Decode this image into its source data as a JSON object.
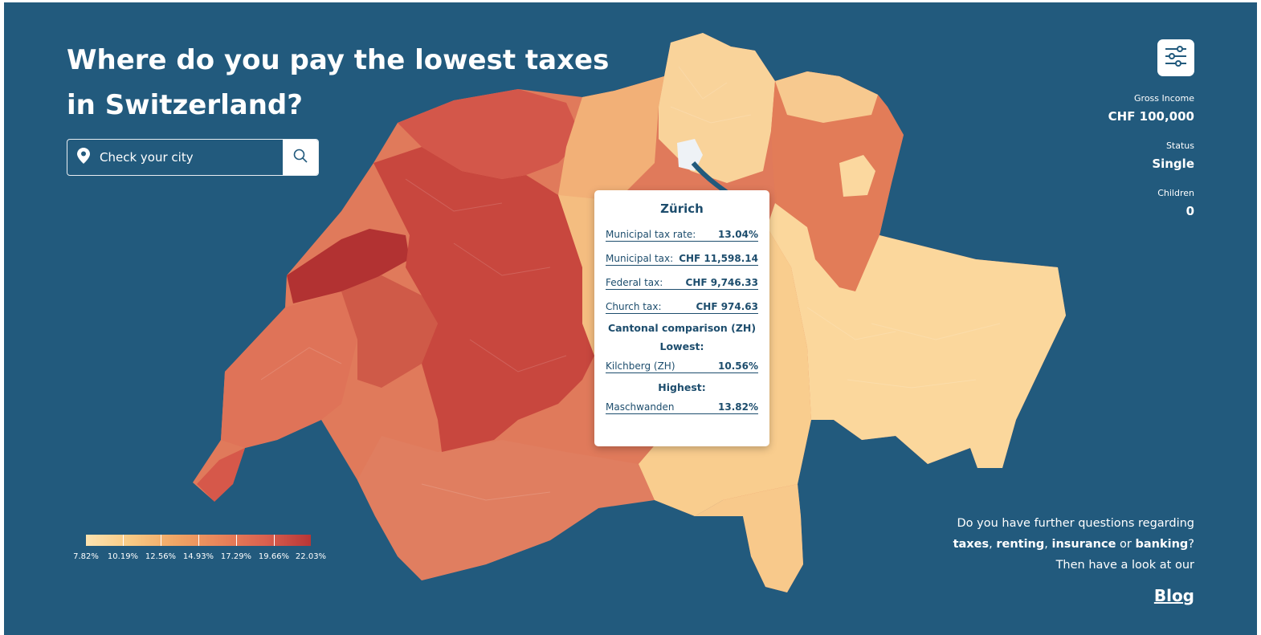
{
  "page": {
    "title": "Where do you pay the lowest taxes in Switzerland?"
  },
  "search": {
    "placeholder": "Check your city"
  },
  "settings": [
    {
      "label": "Gross Income",
      "value": "CHF 100,000"
    },
    {
      "label": "Status",
      "value": "Single"
    },
    {
      "label": "Children",
      "value": "0"
    }
  ],
  "tooltip": {
    "title": "Zürich",
    "rows": [
      {
        "label": "Municipal tax rate:",
        "value": "13.04%"
      },
      {
        "label": "Municipal tax:",
        "value": "CHF 11,598.14"
      },
      {
        "label": "Federal tax:",
        "value": "CHF 9,746.33"
      },
      {
        "label": "Church tax:",
        "value": "CHF 974.63"
      }
    ],
    "comparison_title": "Cantonal comparison (ZH)",
    "lowest_label": "Lowest:",
    "lowest": {
      "label": "Kilchberg (ZH)",
      "value": "10.56%"
    },
    "highest_label": "Highest:",
    "highest": {
      "label": "Maschwanden",
      "value": "13.82%"
    }
  },
  "legend": {
    "labels": [
      "7.82%",
      "10.19%",
      "12.56%",
      "14.93%",
      "17.29%",
      "19.66%",
      "22.03%"
    ]
  },
  "promo": {
    "line1": "Do you have further questions regarding",
    "t1": "taxes",
    "sep1": ", ",
    "t2": "renting",
    "sep2": ", ",
    "t3": "insurance",
    "mid": " or ",
    "t4": "banking",
    "end": "?",
    "line3": "Then have a look at our",
    "link": "Blog"
  },
  "colors": {
    "background": "#225a7d",
    "scale": [
      "#fde3b0",
      "#f8c984",
      "#f0a565",
      "#e8835a",
      "#d9604f",
      "#b73636"
    ],
    "text_dark": "#1d4d6d"
  },
  "icons": [
    "location-pin-icon",
    "search-icon",
    "filter-sliders-icon"
  ]
}
